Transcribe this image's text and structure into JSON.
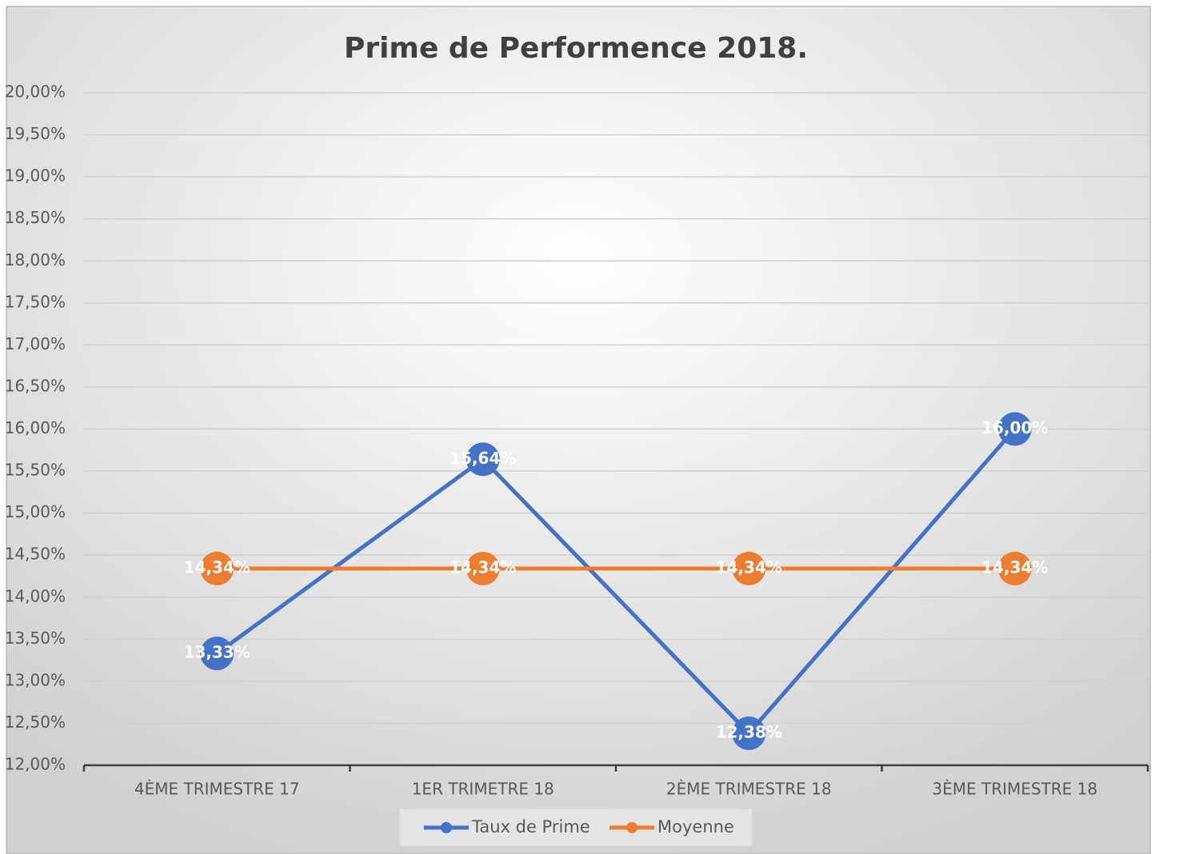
{
  "chart_data": {
    "type": "line",
    "title": "Prime de Performence 2018.",
    "categories": [
      "4ÈME TRIMESTRE 17",
      "1ER TRIMETRE 18",
      "2ÈME TRIMESTRE 18",
      "3ÈME TRIMESTRE 18"
    ],
    "series": [
      {
        "name": "Taux de Prime",
        "color": "#4472c4",
        "values": [
          13.33,
          15.64,
          12.38,
          16.0
        ],
        "value_labels": [
          "13,33%",
          "15,64%",
          "12,38%",
          "16,00%"
        ]
      },
      {
        "name": "Moyenne",
        "color": "#ed7d31",
        "values": [
          14.34,
          14.34,
          14.34,
          14.34
        ],
        "value_labels": [
          "14,34%",
          "14,34%",
          "14,34%",
          "14,34%"
        ]
      }
    ],
    "ylim": [
      12,
      20
    ],
    "yticks": [
      {
        "value": 12,
        "label": "12,00%"
      },
      {
        "value": 12.5,
        "label": "12,50%"
      },
      {
        "value": 13,
        "label": "13,00%"
      },
      {
        "value": 13.5,
        "label": "13,50%"
      },
      {
        "value": 14,
        "label": "14,00%"
      },
      {
        "value": 14.5,
        "label": "14,50%"
      },
      {
        "value": 15,
        "label": "15,00%"
      },
      {
        "value": 15.5,
        "label": "15,50%"
      },
      {
        "value": 16,
        "label": "16,00%"
      },
      {
        "value": 16.5,
        "label": "16,50%"
      },
      {
        "value": 17,
        "label": "17,00%"
      },
      {
        "value": 17.5,
        "label": "17,50%"
      },
      {
        "value": 18,
        "label": "18,00%"
      },
      {
        "value": 18.5,
        "label": "18,50%"
      },
      {
        "value": 19,
        "label": "19,00%"
      },
      {
        "value": 19.5,
        "label": "19,50%"
      },
      {
        "value": 20,
        "label": "20,00%"
      }
    ],
    "grid": true,
    "legend": "bottom"
  }
}
